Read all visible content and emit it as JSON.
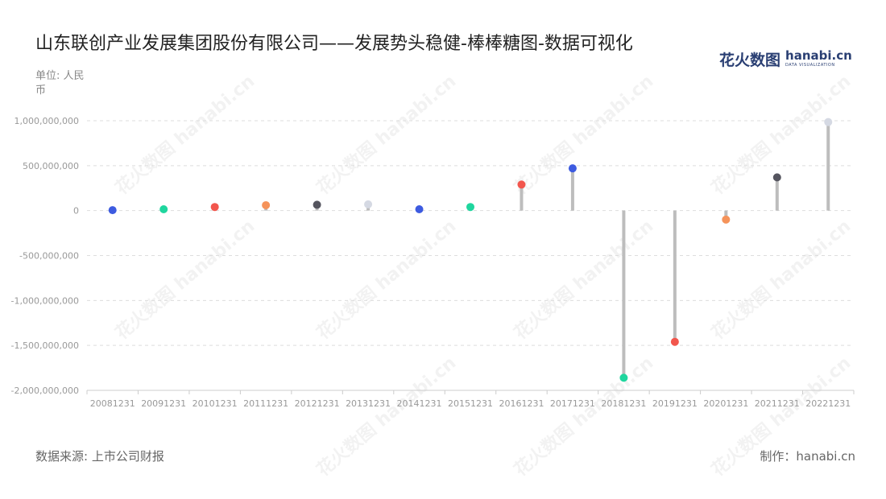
{
  "title": "山东联创产业发展集团股份有限公司——发展势头稳健-棒棒糖图-数据可视化",
  "unit": "单位: 人民币",
  "source": "数据来源: 上市公司财报",
  "credit": "制作：hanabi.cn",
  "logo": {
    "cn": "花火数图",
    "en": "hanabi.cn",
    "sub": "DATA VISUALIZATION"
  },
  "watermark": "花火数图 hanabi.cn",
  "chart_data": {
    "type": "lollipop",
    "categories": [
      "20081231",
      "20091231",
      "20101231",
      "20111231",
      "20121231",
      "20131231",
      "20141231",
      "20151231",
      "20161231",
      "20171231",
      "20181231",
      "20191231",
      "20201231",
      "20211231",
      "20221231"
    ],
    "values": [
      5000000,
      15000000,
      40000000,
      60000000,
      65000000,
      70000000,
      15000000,
      40000000,
      290000000,
      470000000,
      -1860000000,
      -1460000000,
      -100000000,
      370000000,
      985000000
    ],
    "colors": [
      "#3d5be0",
      "#1fd69e",
      "#f2564d",
      "#f5935a",
      "#55555f",
      "#d5d9e3",
      "#3d5be0",
      "#1fd69e",
      "#f2564d",
      "#3d5be0",
      "#1fd69e",
      "#f2564d",
      "#f5935a",
      "#55555f",
      "#d5d9e3"
    ],
    "ylim": [
      -2000000000,
      1000000000
    ],
    "yticks": [
      1000000000,
      500000000,
      0,
      -500000000,
      -1000000000,
      -1500000000,
      -2000000000
    ],
    "ytick_labels": [
      "1,000,000,000",
      "500,000,000",
      "0",
      "-500,000,000",
      "-1,000,000,000",
      "-1,500,000,000",
      "-2,000,000,000"
    ],
    "grid": true,
    "stem_color": "#bdbdbd"
  }
}
